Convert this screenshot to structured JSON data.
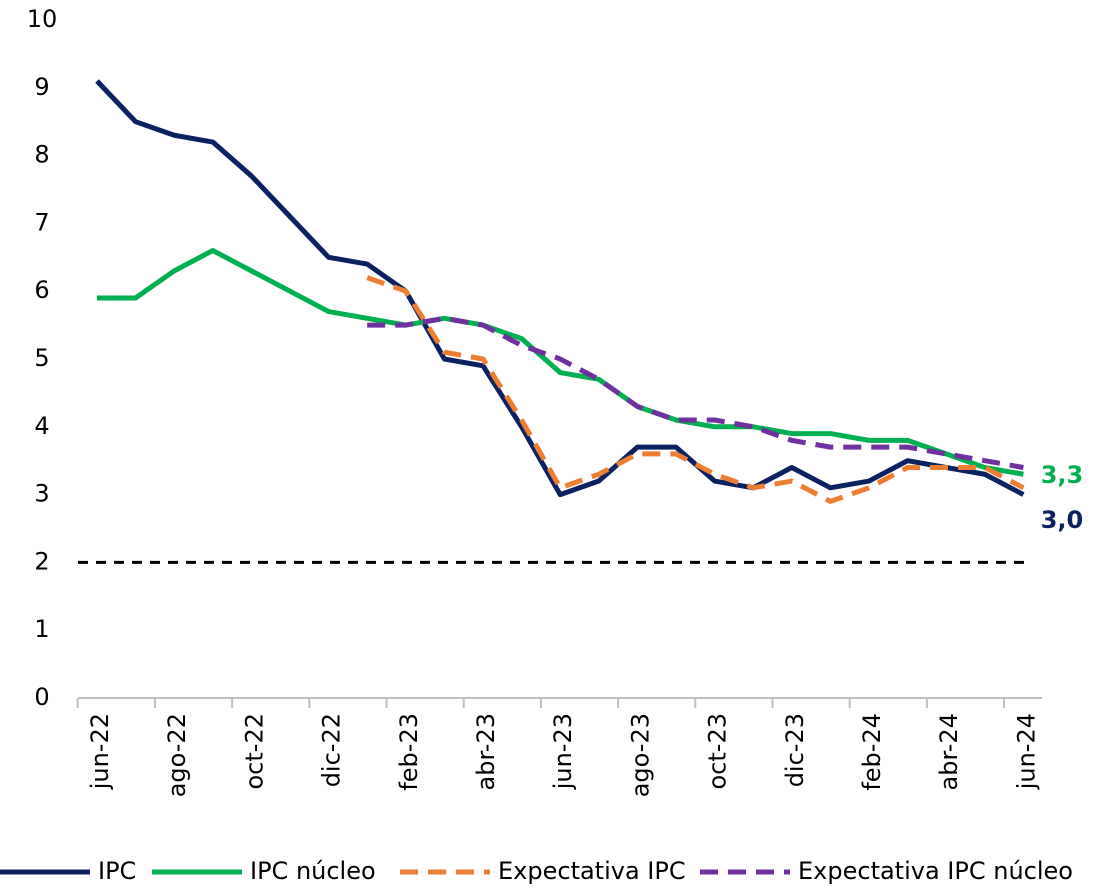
{
  "chart_data": {
    "type": "line",
    "categories": [
      "jun-22",
      null,
      "ago-22",
      null,
      "oct-22",
      null,
      "dic-22",
      null,
      "feb-23",
      null,
      "abr-23",
      null,
      "jun-23",
      null,
      "ago-23",
      null,
      "oct-23",
      null,
      "dic-23",
      null,
      "feb-24",
      null,
      "abr-24",
      null,
      "jun-24"
    ],
    "series": [
      {
        "name": "IPC",
        "color": "#0b2161",
        "dash": false,
        "values": [
          9.1,
          8.5,
          8.3,
          8.2,
          7.7,
          7.1,
          6.5,
          6.4,
          6.0,
          5.0,
          4.9,
          4.0,
          3.0,
          3.2,
          3.7,
          3.7,
          3.2,
          3.1,
          3.4,
          3.1,
          3.2,
          3.5,
          3.4,
          3.3,
          3.0
        ]
      },
      {
        "name": "IPC núcleo",
        "color": "#00b050",
        "dash": false,
        "values": [
          5.9,
          5.9,
          6.3,
          6.6,
          6.3,
          6.0,
          5.7,
          5.6,
          5.5,
          5.6,
          5.5,
          5.3,
          4.8,
          4.7,
          4.3,
          4.1,
          4.0,
          4.0,
          3.9,
          3.9,
          3.8,
          3.8,
          3.6,
          3.4,
          3.3
        ]
      },
      {
        "name": "Expectativa IPC",
        "color": "#ed7d31",
        "dash": true,
        "values": [
          null,
          null,
          null,
          null,
          null,
          null,
          null,
          6.2,
          6.0,
          5.1,
          5.0,
          4.1,
          3.1,
          3.3,
          3.6,
          3.6,
          3.3,
          3.1,
          3.2,
          2.9,
          3.1,
          3.4,
          3.4,
          3.4,
          3.1
        ]
      },
      {
        "name": "Expectativa IPC núcleo",
        "color": "#7030a0",
        "dash": true,
        "values": [
          null,
          null,
          null,
          null,
          null,
          null,
          null,
          5.5,
          5.5,
          5.6,
          5.5,
          5.2,
          5.0,
          4.7,
          4.3,
          4.1,
          4.1,
          4.0,
          3.8,
          3.7,
          3.7,
          3.7,
          3.6,
          3.5,
          3.4
        ]
      }
    ],
    "end_labels": [
      "3,3",
      "3,0"
    ],
    "reference_line": 2,
    "ylim": [
      0,
      10
    ],
    "yticks": [
      0,
      1,
      2,
      3,
      4,
      5,
      6,
      7,
      8,
      9,
      10
    ]
  }
}
